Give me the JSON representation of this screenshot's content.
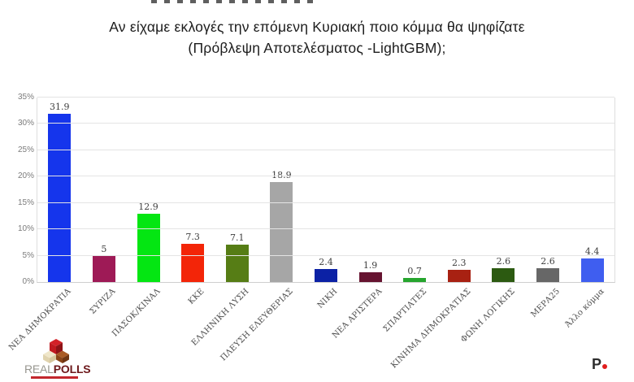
{
  "page": {
    "title_line1": "Αν είχαμε εκλογές την επόμενη Κυριακή ποιο κόμμα θα ψηφίζατε",
    "title_line2": "(Πρόβλεψη Αποτελέσματος -LightGBM);"
  },
  "chart_data": {
    "type": "bar",
    "title": "Αν είχαμε εκλογές την επόμενη Κυριακή ποιο κόμμα θα ψηφίζατε (Πρόβλεψη Αποτελέσματος -LightGBM);",
    "categories": [
      "ΝΕΑ ΔΗΜΟΚΡΑΤΙΑ",
      "ΣΥΡΙΖΑ",
      "ΠΑΣΟΚ/ΚΙΝΑΛ",
      "ΚΚΕ",
      "ΕΛΛΗΝΙΚΗ ΛΥΣΗ",
      "ΠΛΕΥΣΗ ΕΛΕΥΘΕΡΙΑΣ",
      "ΝΙΚΗ",
      "ΝΕΑ ΑΡΙΣΤΕΡΑ",
      "ΣΠΑΡΤΙΑΤΕΣ",
      "ΚΙΝΗΜΑ ΔΗΜΟΚΡΑΤΙΑΣ",
      "ΦΩΝΗ ΛΟΓΙΚΗΣ",
      "ΜΕΡΑ25",
      "Άλλο κόμμα"
    ],
    "values": [
      31.9,
      5,
      12.9,
      7.3,
      7.1,
      18.9,
      2.4,
      1.9,
      0.7,
      2.3,
      2.6,
      2.6,
      4.4
    ],
    "value_labels": [
      "31.9",
      "5",
      "12.9",
      "7.3",
      "7.1",
      "18.9",
      "2.4",
      "1.9",
      "0.7",
      "2.3",
      "2.6",
      "2.6",
      "4.4"
    ],
    "bar_colors": [
      "#1535ec",
      "#9e1a56",
      "#04e612",
      "#f32508",
      "#567d15",
      "#a6a6a6",
      "#0b21a5",
      "#661330",
      "#26a52e",
      "#a82112",
      "#2c5a11",
      "#676767",
      "#3f5ef0"
    ],
    "xlabel": "",
    "ylabel": "",
    "ylim": [
      0,
      35
    ],
    "y_ticks": [
      "0%",
      "5%",
      "10%",
      "15%",
      "20%",
      "25%",
      "30%",
      "35%"
    ],
    "y_tick_values": [
      0,
      5,
      10,
      15,
      20,
      25,
      30,
      35
    ],
    "grid": true,
    "legend": false
  },
  "footer": {
    "realpolls": {
      "real": "REAL",
      "polls": "POLLS"
    },
    "p_logo": {
      "letter": "P"
    }
  },
  "colors": {
    "accent_red": "#c2272d",
    "title_text": "#1c1c1c",
    "gridline": "#e4e4e4"
  }
}
